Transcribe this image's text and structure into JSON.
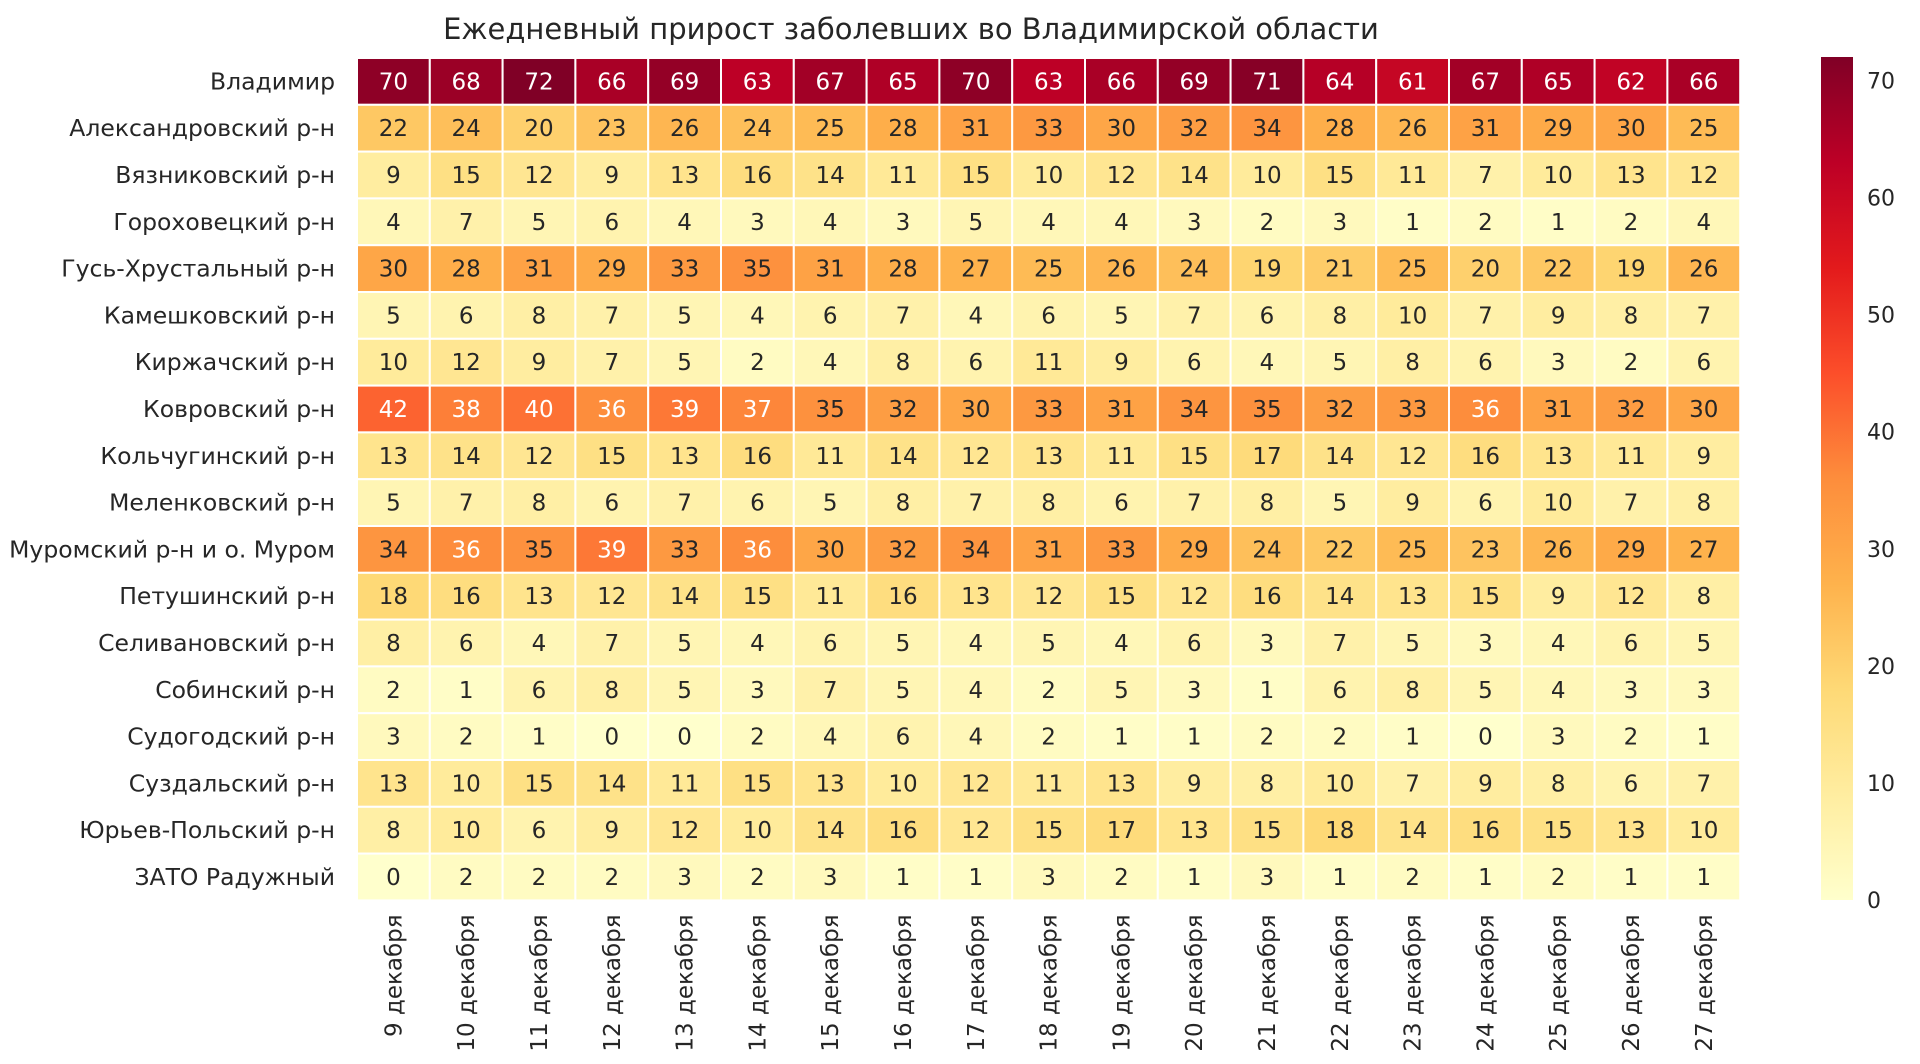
{
  "chart_data": {
    "type": "heatmap",
    "title": "Ежедневный прирост заболевших во Владимирской области",
    "xlabel": "",
    "ylabel": "",
    "x_labels": [
      "9 декабря",
      "10 декабря",
      "11 декабря",
      "12 декабря",
      "13 декабря",
      "14 декабря",
      "15 декабря",
      "16 декабря",
      "17 декабря",
      "18 декабря",
      "19 декабря",
      "20 декабря",
      "21 декабря",
      "22 декабря",
      "23 декабря",
      "24 декабря",
      "25 декабря",
      "26 декабря",
      "27 декабря"
    ],
    "y_labels": [
      "Владимир",
      "Александровский р-н",
      "Вязниковский р-н",
      "Гороховецкий р-н",
      "Гусь-Хрустальный р-н",
      "Камешковский р-н",
      "Киржачский р-н",
      "Ковровский р-н",
      "Кольчугинский р-н",
      "Меленковский р-н",
      "Муромский р-н и о. Муром",
      "Петушинский р-н",
      "Селивановский р-н",
      "Собинский р-н",
      "Судогодский р-н",
      "Суздальский р-н",
      "Юрьев-Польский р-н",
      "ЗАТО Радужный"
    ],
    "values": [
      [
        70,
        68,
        72,
        66,
        69,
        63,
        67,
        65,
        70,
        63,
        66,
        69,
        71,
        64,
        61,
        67,
        65,
        62,
        66
      ],
      [
        22,
        24,
        20,
        23,
        26,
        24,
        25,
        28,
        31,
        33,
        30,
        32,
        34,
        28,
        26,
        31,
        29,
        30,
        25
      ],
      [
        9,
        15,
        12,
        9,
        13,
        16,
        14,
        11,
        15,
        10,
        12,
        14,
        10,
        15,
        11,
        7,
        10,
        13,
        12
      ],
      [
        4,
        7,
        5,
        6,
        4,
        3,
        4,
        3,
        5,
        4,
        4,
        3,
        2,
        3,
        1,
        2,
        1,
        2,
        4
      ],
      [
        30,
        28,
        31,
        29,
        33,
        35,
        31,
        28,
        27,
        25,
        26,
        24,
        19,
        21,
        25,
        20,
        22,
        19,
        26
      ],
      [
        5,
        6,
        8,
        7,
        5,
        4,
        6,
        7,
        4,
        6,
        5,
        7,
        6,
        8,
        10,
        7,
        9,
        8,
        7
      ],
      [
        10,
        12,
        9,
        7,
        5,
        2,
        4,
        8,
        6,
        11,
        9,
        6,
        4,
        5,
        8,
        6,
        3,
        2,
        6
      ],
      [
        42,
        38,
        40,
        36,
        39,
        37,
        35,
        32,
        30,
        33,
        31,
        34,
        35,
        32,
        33,
        36,
        31,
        32,
        30
      ],
      [
        13,
        14,
        12,
        15,
        13,
        16,
        11,
        14,
        12,
        13,
        11,
        15,
        17,
        14,
        12,
        16,
        13,
        11,
        9
      ],
      [
        5,
        7,
        8,
        6,
        7,
        6,
        5,
        8,
        7,
        8,
        6,
        7,
        8,
        5,
        9,
        6,
        10,
        7,
        8
      ],
      [
        34,
        36,
        35,
        39,
        33,
        36,
        30,
        32,
        34,
        31,
        33,
        29,
        24,
        22,
        25,
        23,
        26,
        29,
        27
      ],
      [
        18,
        16,
        13,
        12,
        14,
        15,
        11,
        16,
        13,
        12,
        15,
        12,
        16,
        14,
        13,
        15,
        9,
        12,
        8
      ],
      [
        8,
        6,
        4,
        7,
        5,
        4,
        6,
        5,
        4,
        5,
        4,
        6,
        3,
        7,
        5,
        3,
        4,
        6,
        5
      ],
      [
        2,
        1,
        6,
        8,
        5,
        3,
        7,
        5,
        4,
        2,
        5,
        3,
        1,
        6,
        8,
        5,
        4,
        3,
        3
      ],
      [
        3,
        2,
        1,
        0,
        0,
        2,
        4,
        6,
        4,
        2,
        1,
        1,
        2,
        2,
        1,
        0,
        3,
        2,
        1
      ],
      [
        13,
        10,
        15,
        14,
        11,
        15,
        13,
        10,
        12,
        11,
        13,
        9,
        8,
        10,
        7,
        9,
        8,
        6,
        7
      ],
      [
        8,
        10,
        6,
        9,
        12,
        10,
        14,
        16,
        12,
        15,
        17,
        13,
        15,
        18,
        14,
        16,
        15,
        13,
        10
      ],
      [
        0,
        2,
        2,
        2,
        3,
        2,
        3,
        1,
        1,
        3,
        2,
        1,
        3,
        1,
        2,
        1,
        2,
        1,
        1
      ]
    ],
    "vmin": 0,
    "vmax": 72,
    "colormap": "YlOrRd",
    "colorbar_ticks": [
      0,
      10,
      20,
      30,
      40,
      50,
      60,
      70
    ],
    "cell_text_threshold": 36,
    "colors": {
      "cell_border": "#ffffff",
      "text_dark": "#262626",
      "text_light": "#ffffff"
    }
  }
}
